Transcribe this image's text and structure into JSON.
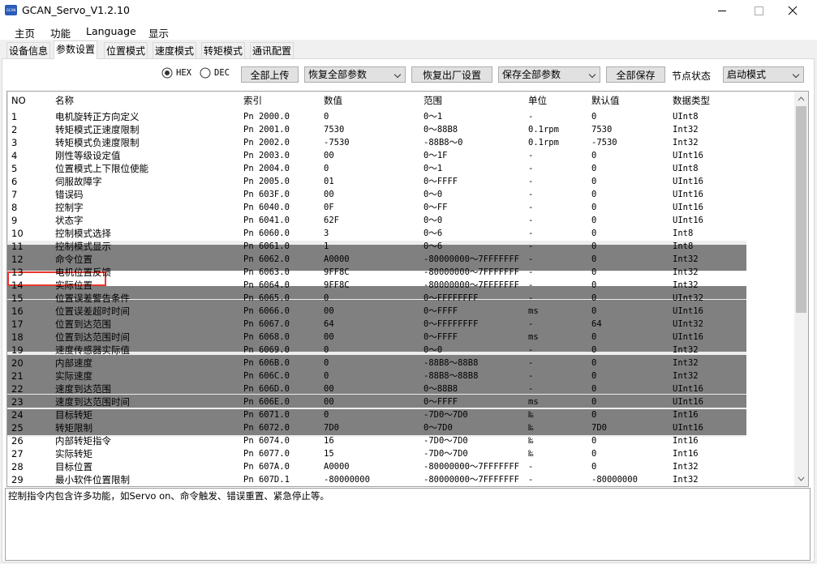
{
  "window": {
    "title": "GCAN_Servo_V1.2.10",
    "icon": "GCAN"
  },
  "menu": [
    "主页",
    "功能",
    "Language",
    "显示"
  ],
  "tabs": [
    "设备信息",
    "参数设置",
    "位置模式",
    "速度模式",
    "转矩模式",
    "通讯配置"
  ],
  "toolbar": {
    "radio_hex": "HEX",
    "radio_dec": "DEC",
    "upload_all": "全部上传",
    "restore_select": "恢复全部参数",
    "factory_reset": "恢复出厂设置",
    "save_select": "保存全部参数",
    "save_all": "全部保存",
    "node_state_label": "节点状态",
    "node_state_select": "启动模式"
  },
  "table": {
    "headers": [
      "NO",
      "名称",
      "索引",
      "数值",
      "范围",
      "单位",
      "默认值",
      "数据类型"
    ],
    "rows": [
      [
        "1",
        "电机旋转正方向定义",
        "Pn 2000.0",
        "0",
        "0～1",
        "-",
        "0",
        "UInt8"
      ],
      [
        "2",
        "转矩模式正速度限制",
        "Pn 2001.0",
        "7530",
        "0～88B8",
        "0.1rpm",
        "7530",
        "Int32"
      ],
      [
        "3",
        "转矩模式负速度限制",
        "Pn 2002.0",
        "-7530",
        "-88B8～0",
        "0.1rpm",
        "-7530",
        "Int32"
      ],
      [
        "4",
        "刚性等级设定值",
        "Pn 2003.0",
        "00",
        "0～1F",
        "-",
        "0",
        "UInt16"
      ],
      [
        "5",
        "位置模式上下限位使能",
        "Pn 2004.0",
        "0",
        "0～1",
        "-",
        "0",
        "UInt8"
      ],
      [
        "6",
        "伺服故障字",
        "Pn 2005.0",
        "01",
        "0～FFFF",
        "-",
        "0",
        "UInt16"
      ],
      [
        "7",
        "错误码",
        "Pn 603F.0",
        "00",
        "0～0",
        "-",
        "0",
        "UInt16"
      ],
      [
        "8",
        "控制字",
        "Pn 6040.0",
        "0F",
        "0～FF",
        "-",
        "0",
        "UInt16"
      ],
      [
        "9",
        "状态字",
        "Pn 6041.0",
        "62F",
        "0～0",
        "-",
        "0",
        "UInt16"
      ],
      [
        "10",
        "控制模式选择",
        "Pn 6060.0",
        "3",
        "0～6",
        "-",
        "0",
        "Int8"
      ],
      [
        "11",
        "控制模式显示",
        "Pn 6061.0",
        "1",
        "0～6",
        "-",
        "0",
        "Int8"
      ],
      [
        "12",
        "命令位置",
        "Pn 6062.0",
        "A0000",
        "-80000000～7FFFFFFF",
        "-",
        "0",
        "Int32"
      ],
      [
        "13",
        "电机位置反馈",
        "Pn 6063.0",
        "9FF8C",
        "-80000000～7FFFFFFF",
        "-",
        "0",
        "Int32"
      ],
      [
        "14",
        "实际位置",
        "Pn 6064.0",
        "9FF8C",
        "-80000000～7FFFFFFF",
        "-",
        "0",
        "Int32"
      ],
      [
        "15",
        "位置误差警告条件",
        "Pn 6065.0",
        "0",
        "0～FFFFFFFF",
        "-",
        "0",
        "UInt32"
      ],
      [
        "16",
        "位置误差超时时间",
        "Pn 6066.0",
        "00",
        "0～FFFF",
        "ms",
        "0",
        "UInt16"
      ],
      [
        "17",
        "位置到达范围",
        "Pn 6067.0",
        "64",
        "0～FFFFFFFF",
        "-",
        "64",
        "UInt32"
      ],
      [
        "18",
        "位置到达范围时间",
        "Pn 6068.0",
        "00",
        "0～FFFF",
        "ms",
        "0",
        "UInt16"
      ],
      [
        "19",
        "速度传感器实际值",
        "Pn 6069.0",
        "0",
        "0～0",
        "-",
        "0",
        "Int32"
      ],
      [
        "20",
        "内部速度",
        "Pn 606B.0",
        "0",
        "-88B8～88B8",
        "-",
        "0",
        "Int32"
      ],
      [
        "21",
        "实际速度",
        "Pn 606C.0",
        "0",
        "-88B8～88B8",
        "-",
        "0",
        "Int32"
      ],
      [
        "22",
        "速度到达范围",
        "Pn 606D.0",
        "00",
        "0～88B8",
        "-",
        "0",
        "UInt16"
      ],
      [
        "23",
        "速度到达范围时间",
        "Pn 606E.0",
        "00",
        "0～FFFF",
        "ms",
        "0",
        "UInt16"
      ],
      [
        "24",
        "目标转矩",
        "Pn 6071.0",
        "0",
        "-7D0～7D0",
        "‰",
        "0",
        "Int16"
      ],
      [
        "25",
        "转矩限制",
        "Pn 6072.0",
        "7D0",
        "0～7D0",
        "‰",
        "7D0",
        "UInt16"
      ],
      [
        "26",
        "内部转矩指令",
        "Pn 6074.0",
        "16",
        "-7D0～7D0",
        "‰",
        "0",
        "Int16"
      ],
      [
        "27",
        "实际转矩",
        "Pn 6077.0",
        "15",
        "-7D0～7D0",
        "‰",
        "0",
        "Int16"
      ],
      [
        "28",
        "目标位置",
        "Pn 607A.0",
        "A0000",
        "-80000000～7FFFFFFF",
        "-",
        "0",
        "Int32"
      ],
      [
        "29",
        "最小软件位置限制",
        "Pn 607D.1",
        "-80000000",
        "-80000000～7FFFFFFF",
        "-",
        "-80000000",
        "Int32"
      ]
    ]
  },
  "status_text": "控制指令内包含许多功能，如Servo on、命令触发、错误重置、紧急停止等。"
}
